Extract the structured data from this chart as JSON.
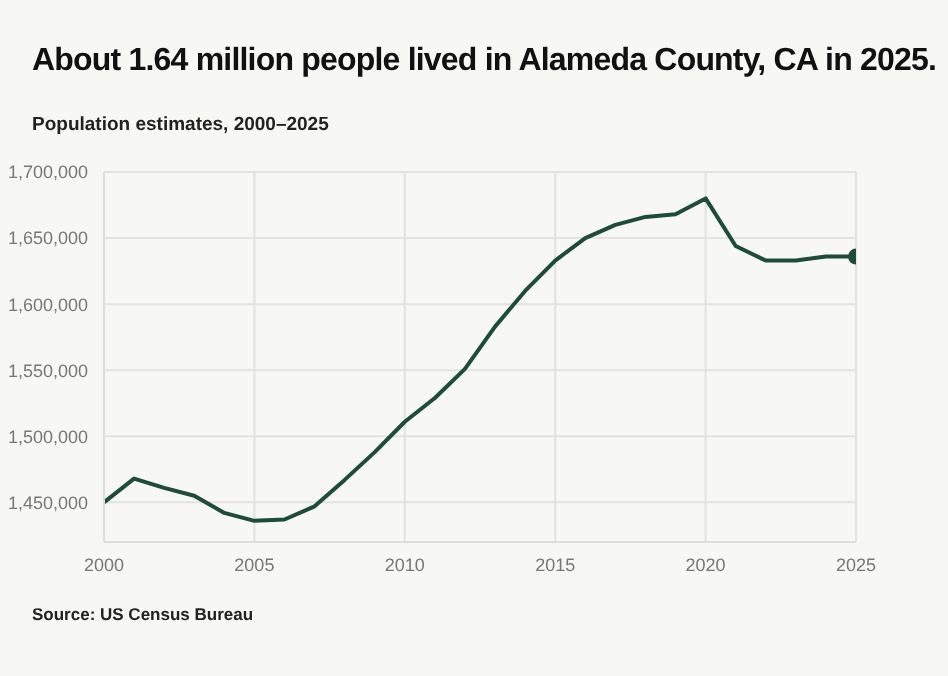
{
  "chart_data": {
    "type": "line",
    "title": "About 1.64 million people lived in Alameda County, CA in 2025.",
    "subtitle": "Population estimates, 2000–2025",
    "annotations": [
      "Source: US Census Bureau"
    ],
    "x": [
      2000,
      2001,
      2002,
      2003,
      2004,
      2005,
      2006,
      2007,
      2008,
      2009,
      2010,
      2011,
      2012,
      2013,
      2014,
      2015,
      2016,
      2017,
      2018,
      2019,
      2020,
      2021,
      2022,
      2023,
      2024,
      2025
    ],
    "series": [
      {
        "color": "#1d4d3a",
        "values": [
          1450000,
          1468000,
          1461000,
          1455000,
          1442000,
          1436000,
          1437000,
          1447000,
          1467000,
          1488000,
          1511000,
          1529000,
          1551000,
          1583000,
          1610000,
          1633000,
          1650000,
          1660000,
          1666000,
          1668000,
          1680000,
          1644000,
          1633000,
          1633000,
          1636000,
          1636000
        ]
      }
    ],
    "xlim": [
      2000,
      2025
    ],
    "xticks": [
      2000,
      2005,
      2010,
      2015,
      2020,
      2025
    ],
    "ylim": [
      1420000,
      1700000
    ],
    "yticks": [
      {
        "value": 1450000,
        "label": "1,450,000"
      },
      {
        "value": 1500000,
        "label": "1,500,000"
      },
      {
        "value": 1550000,
        "label": "1,550,000"
      },
      {
        "value": 1600000,
        "label": "1,600,000"
      },
      {
        "value": 1650000,
        "label": "1,650,000"
      },
      {
        "value": 1700000,
        "label": "1,700,000"
      }
    ],
    "grid": true,
    "marker": "none",
    "line_style": "solid"
  }
}
